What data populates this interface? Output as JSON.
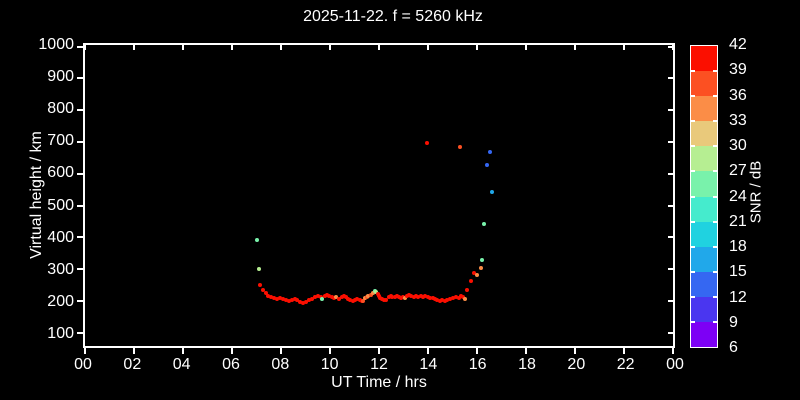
{
  "colors": {
    "background": "#000000",
    "foreground": "#ffffff"
  },
  "colorbar": {
    "label": "SNR / dB",
    "range": [
      6,
      42
    ],
    "step": 3,
    "ticks": [
      6,
      9,
      12,
      15,
      18,
      21,
      24,
      27,
      30,
      33,
      36,
      39,
      42
    ],
    "colors": [
      "#7d00f5",
      "#4a36f0",
      "#3567f2",
      "#21a8ea",
      "#20d2e0",
      "#45ebcd",
      "#79f2ab",
      "#b6ee92",
      "#e9c97b",
      "#fb8d47",
      "#fc5022",
      "#fb0f00"
    ]
  },
  "chart_data": {
    "type": "scatter",
    "title": "2025-11-22. f = 5260 kHz",
    "xlabel": "UT Time / hrs",
    "ylabel": "Virtual height / km",
    "x_range": [
      0,
      24
    ],
    "y_range": [
      58,
      1005
    ],
    "x_tick_values": [
      0,
      2,
      4,
      6,
      8,
      10,
      12,
      14,
      16,
      18,
      20,
      22,
      24
    ],
    "x_tick_labels": [
      "00",
      "02",
      "04",
      "06",
      "08",
      "10",
      "12",
      "14",
      "16",
      "18",
      "20",
      "22",
      "00"
    ],
    "y_tick_values": [
      100,
      200,
      300,
      400,
      500,
      600,
      700,
      800,
      900,
      1000
    ],
    "grid": false,
    "legend": "colorbar-right",
    "points_format": [
      "time_hr",
      "virtual_height_km",
      "snr_db"
    ],
    "points": [
      [
        7.03,
        392,
        25
      ],
      [
        7.1,
        300,
        28
      ],
      [
        7.15,
        251,
        41
      ],
      [
        7.27,
        235,
        41
      ],
      [
        7.37,
        224,
        41
      ],
      [
        7.47,
        215,
        41
      ],
      [
        7.59,
        212,
        41
      ],
      [
        7.72,
        209,
        41
      ],
      [
        7.84,
        206,
        41
      ],
      [
        7.96,
        209,
        41
      ],
      [
        8.08,
        206,
        41
      ],
      [
        8.2,
        203,
        41
      ],
      [
        8.32,
        200,
        41
      ],
      [
        8.45,
        203,
        41
      ],
      [
        8.57,
        206,
        41
      ],
      [
        8.65,
        203,
        41
      ],
      [
        8.77,
        196,
        41
      ],
      [
        8.89,
        193,
        41
      ],
      [
        9.02,
        196,
        41
      ],
      [
        9.14,
        203,
        41
      ],
      [
        9.26,
        206,
        41
      ],
      [
        9.38,
        212,
        41
      ],
      [
        9.5,
        215,
        41
      ],
      [
        9.62,
        212,
        41
      ],
      [
        9.66,
        206,
        25
      ],
      [
        9.79,
        215,
        41
      ],
      [
        9.87,
        218,
        41
      ],
      [
        9.95,
        215,
        41
      ],
      [
        10.07,
        212,
        41
      ],
      [
        10.15,
        209,
        41
      ],
      [
        10.23,
        212,
        34
      ],
      [
        10.35,
        206,
        41
      ],
      [
        10.48,
        212,
        41
      ],
      [
        10.56,
        215,
        41
      ],
      [
        10.64,
        212,
        41
      ],
      [
        10.72,
        206,
        41
      ],
      [
        10.8,
        203,
        41
      ],
      [
        10.92,
        200,
        41
      ],
      [
        11.0,
        203,
        41
      ],
      [
        11.09,
        206,
        41
      ],
      [
        11.21,
        203,
        41
      ],
      [
        11.29,
        200,
        41
      ],
      [
        11.33,
        200,
        37
      ],
      [
        11.41,
        209,
        34
      ],
      [
        11.49,
        212,
        37
      ],
      [
        11.57,
        215,
        34
      ],
      [
        11.66,
        218,
        37
      ],
      [
        11.74,
        224,
        34
      ],
      [
        11.82,
        230,
        25
      ],
      [
        11.86,
        227,
        28
      ],
      [
        11.94,
        221,
        41
      ],
      [
        11.98,
        215,
        41
      ],
      [
        12.06,
        209,
        41
      ],
      [
        12.14,
        206,
        41
      ],
      [
        12.22,
        203,
        41
      ],
      [
        12.3,
        203,
        41
      ],
      [
        12.39,
        212,
        41
      ],
      [
        12.47,
        215,
        41
      ],
      [
        12.55,
        212,
        41
      ],
      [
        12.67,
        212,
        41
      ],
      [
        12.75,
        215,
        41
      ],
      [
        12.83,
        212,
        41
      ],
      [
        12.91,
        209,
        41
      ],
      [
        12.99,
        212,
        41
      ],
      [
        13.08,
        209,
        34
      ],
      [
        13.16,
        215,
        41
      ],
      [
        13.24,
        218,
        41
      ],
      [
        13.32,
        215,
        41
      ],
      [
        13.44,
        212,
        41
      ],
      [
        13.52,
        215,
        41
      ],
      [
        13.6,
        212,
        41
      ],
      [
        13.73,
        215,
        41
      ],
      [
        13.81,
        212,
        41
      ],
      [
        13.89,
        215,
        41
      ],
      [
        13.97,
        697,
        41
      ],
      [
        14.01,
        212,
        41
      ],
      [
        14.09,
        209,
        41
      ],
      [
        14.21,
        209,
        41
      ],
      [
        14.29,
        206,
        41
      ],
      [
        14.38,
        203,
        41
      ],
      [
        14.5,
        200,
        41
      ],
      [
        14.58,
        203,
        41
      ],
      [
        14.7,
        200,
        41
      ],
      [
        14.78,
        203,
        41
      ],
      [
        14.9,
        206,
        41
      ],
      [
        15.02,
        209,
        41
      ],
      [
        15.15,
        212,
        41
      ],
      [
        15.27,
        209,
        41
      ],
      [
        15.29,
        683,
        37
      ],
      [
        15.35,
        215,
        41
      ],
      [
        15.43,
        212,
        41
      ],
      [
        15.53,
        207,
        34
      ],
      [
        15.61,
        235,
        41
      ],
      [
        15.74,
        263,
        41
      ],
      [
        15.86,
        289,
        41
      ],
      [
        16.0,
        281,
        34
      ],
      [
        16.18,
        303,
        34
      ],
      [
        16.22,
        328,
        25
      ],
      [
        16.3,
        443,
        25
      ],
      [
        16.41,
        628,
        13
      ],
      [
        16.53,
        669,
        13
      ],
      [
        16.61,
        541,
        16
      ]
    ]
  }
}
